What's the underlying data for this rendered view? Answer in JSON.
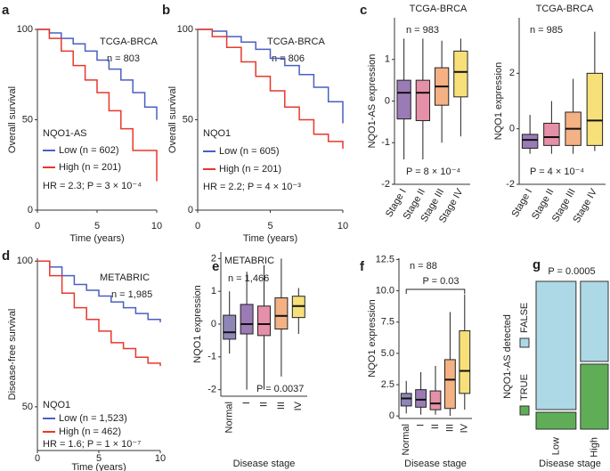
{
  "chart_data": [
    {
      "panel_label": "a",
      "type": "line",
      "step": true,
      "title": "TCGA-BRCA",
      "n_label": "n = 803",
      "legend_title": "NQO1-AS",
      "hr_label": "HR = 2.3; P = 3 × 10⁻⁴",
      "xlabel": "Time (years)",
      "ylabel": "Overall survival",
      "x": [
        0,
        1,
        2,
        3,
        4,
        5,
        6,
        7,
        8,
        9,
        10
      ],
      "series": [
        {
          "name": "Low (n = 602)",
          "color": "#4a5fc1",
          "values": [
            100,
            98,
            95,
            92,
            88,
            83,
            78,
            72,
            65,
            57,
            50
          ]
        },
        {
          "name": "High (n = 201)",
          "color": "#e8372c",
          "values": [
            100,
            95,
            88,
            80,
            72,
            65,
            55,
            45,
            33,
            33,
            16
          ]
        }
      ],
      "xlim": [
        0,
        10
      ],
      "xticks": [
        0,
        5,
        10
      ],
      "ylim": [
        0,
        100
      ],
      "yticks": [
        0,
        50,
        100
      ]
    },
    {
      "panel_label": "b",
      "type": "line",
      "step": true,
      "title": "TCGA-BRCA",
      "n_label": "n = 806",
      "legend_title": "NQO1",
      "hr_label": "HR = 2.2; P = 4 × 10⁻³",
      "xlabel": "Time (years)",
      "ylabel": "Overall survival",
      "x": [
        0,
        1,
        2,
        3,
        4,
        5,
        6,
        7,
        8,
        9,
        10
      ],
      "series": [
        {
          "name": "Low (n = 605)",
          "color": "#4a5fc1",
          "values": [
            100,
            99,
            96,
            93,
            89,
            84,
            80,
            75,
            68,
            60,
            48
          ]
        },
        {
          "name": "High (n = 201)",
          "color": "#e8372c",
          "values": [
            100,
            96,
            90,
            82,
            74,
            66,
            57,
            50,
            42,
            38,
            34
          ]
        }
      ],
      "xlim": [
        0,
        10
      ],
      "xticks": [
        0,
        5,
        10
      ],
      "ylim": [
        0,
        100
      ],
      "yticks": [
        0,
        50,
        100
      ]
    },
    {
      "panel_label": "c",
      "type": "box",
      "title": "TCGA-BRCA",
      "n_label": "n = 983",
      "p_label": "P = 8 × 10⁻⁴",
      "ylabel": "NQO1-AS expression",
      "categories": [
        "Stage I",
        "Stage II",
        "Stage III",
        "Stage IV"
      ],
      "colors": [
        "#9b7bb5",
        "#e58fa8",
        "#f4b183",
        "#f7e07a"
      ],
      "boxes": [
        {
          "whislo": -1.4,
          "q1": -0.43,
          "med": 0.2,
          "q3": 0.5,
          "whishi": 1.5
        },
        {
          "whislo": -1.4,
          "q1": -0.47,
          "med": 0.2,
          "q3": 0.5,
          "whishi": 1.5
        },
        {
          "whislo": -1.0,
          "q1": -0.1,
          "med": 0.35,
          "q3": 0.8,
          "whishi": 1.45
        },
        {
          "whislo": -0.85,
          "q1": 0.1,
          "med": 0.7,
          "q3": 1.2,
          "whishi": 1.5
        }
      ],
      "ylim": [
        -2,
        2
      ],
      "yticks": [
        -2,
        -1,
        0,
        1
      ]
    },
    {
      "type": "box",
      "title": "TCGA-BRCA",
      "n_label": "n = 985",
      "p_label": "P = 4 × 10⁻⁴",
      "ylabel": "NQO1 expression",
      "categories": [
        "Stage I",
        "Stage II",
        "Stage III",
        "Stage IV"
      ],
      "colors": [
        "#9b7bb5",
        "#e58fa8",
        "#f4b183",
        "#f7e07a"
      ],
      "boxes": [
        {
          "whislo": -0.9,
          "q1": -0.7,
          "med": -0.4,
          "q3": -0.2,
          "whishi": 0.5
        },
        {
          "whislo": -0.9,
          "q1": -0.6,
          "med": -0.3,
          "q3": 0.2,
          "whishi": 1.0
        },
        {
          "whislo": -0.9,
          "q1": -0.6,
          "med": 0,
          "q3": 0.6,
          "whishi": 1.8
        },
        {
          "whislo": -0.8,
          "q1": -0.6,
          "med": 0.3,
          "q3": 2.0,
          "whishi": 3.5
        }
      ],
      "ylim": [
        -2,
        4
      ],
      "yticks": [
        -2,
        0,
        2
      ]
    },
    {
      "panel_label": "d",
      "type": "line",
      "step": true,
      "title": "METABRIC",
      "n_label": "n = 1,985",
      "legend_title": "NQO1",
      "hr_label": "HR = 1.6; P = 1 × 10⁻⁷",
      "xlabel": "Time (years)",
      "ylabel": "Disease-free survival",
      "x": [
        0,
        1,
        2,
        3,
        4,
        5,
        6,
        7,
        8,
        9,
        10
      ],
      "series": [
        {
          "name": "Low (n = 1,523)",
          "color": "#4a5fc1",
          "values": [
            100,
            98,
            95,
            92,
            90,
            88,
            86,
            84,
            82,
            80,
            79
          ]
        },
        {
          "name": "High (n = 462)",
          "color": "#e8372c",
          "values": [
            100,
            95,
            89,
            84,
            80,
            76,
            72,
            70,
            67,
            65,
            64
          ]
        }
      ],
      "xlim": [
        0,
        10
      ],
      "xticks": [
        0,
        5,
        10
      ],
      "ylim": [
        35,
        101
      ],
      "yticks": [
        50,
        100
      ]
    },
    {
      "panel_label": "e",
      "type": "box",
      "title": "METABRIC",
      "n_label": "n = 1,466",
      "p_label": "P = 0.0037",
      "ylabel": "NQO1 expression",
      "xlabel": "Disease stage",
      "categories": [
        "Normal",
        "I",
        "II",
        "III",
        "IV"
      ],
      "colors": [
        "#8f86b8",
        "#9b7bb5",
        "#e58fa8",
        "#f4b183",
        "#f7e07a"
      ],
      "boxes": [
        {
          "whislo": -0.9,
          "q1": -0.46,
          "med": -0.25,
          "q3": 0.27,
          "whishi": 1.0
        },
        {
          "whislo": -2.0,
          "q1": -0.3,
          "med": 0,
          "q3": 0.6,
          "whishi": 1.6
        },
        {
          "whislo": -2.0,
          "q1": -0.35,
          "med": 0,
          "q3": 0.55,
          "whishi": 1.8
        },
        {
          "whislo": -1.6,
          "q1": -0.15,
          "med": 0.25,
          "q3": 0.8,
          "whishi": 2.0
        },
        {
          "whislo": -0.3,
          "q1": 0.2,
          "med": 0.55,
          "q3": 0.85,
          "whishi": 1.1
        }
      ],
      "ylim": [
        -2.2,
        2.2
      ],
      "yticks": [
        -2,
        -1,
        0,
        1,
        2
      ]
    },
    {
      "panel_label": "f",
      "type": "box",
      "n_label": "n = 88",
      "p_label": "P = 0.03",
      "ylabel": "NQO1 expression",
      "xlabel": "Disease stage",
      "categories": [
        "Normal",
        "I",
        "II",
        "III",
        "IV"
      ],
      "colors": [
        "#8f86b8",
        "#9b7bb5",
        "#e58fa8",
        "#f4b183",
        "#f7e07a"
      ],
      "boxes": [
        {
          "whislo": 0.2,
          "q1": 0.8,
          "med": 1.4,
          "q3": 1.8,
          "whishi": 2.8
        },
        {
          "whislo": 0.1,
          "q1": 0.7,
          "med": 1.3,
          "q3": 2.1,
          "whishi": 3.5
        },
        {
          "whislo": 0.1,
          "q1": 0.5,
          "med": 1.0,
          "q3": 2.0,
          "whishi": 4.0
        },
        {
          "whislo": 0,
          "q1": 0.6,
          "med": 2.9,
          "q3": 4.5,
          "whishi": 8.3
        },
        {
          "whislo": 0.5,
          "q1": 1.8,
          "med": 3.6,
          "q3": 6.8,
          "whishi": 9.7
        }
      ],
      "ylim": [
        -0.2,
        12.6
      ],
      "yticks": [
        0,
        2.5,
        {
          "value": 5,
          "label": "5.0"
        },
        7.5,
        {
          "value": 10,
          "label": "10.0"
        },
        12.5
      ]
    },
    {
      "panel_label": "g",
      "type": "mosaic",
      "p_label": "P = 0.0005",
      "ylabel": "NQO1-AS detected",
      "xlabel": "Disease stage",
      "categories": [
        "Low",
        "High"
      ],
      "widths": [
        59,
        41
      ],
      "series": [
        {
          "name": "FALSE",
          "color": "#add8e6",
          "values": [
            87,
            55
          ]
        },
        {
          "name": "TRUE",
          "color": "#5fae57",
          "values": [
            13,
            45
          ]
        }
      ]
    }
  ]
}
